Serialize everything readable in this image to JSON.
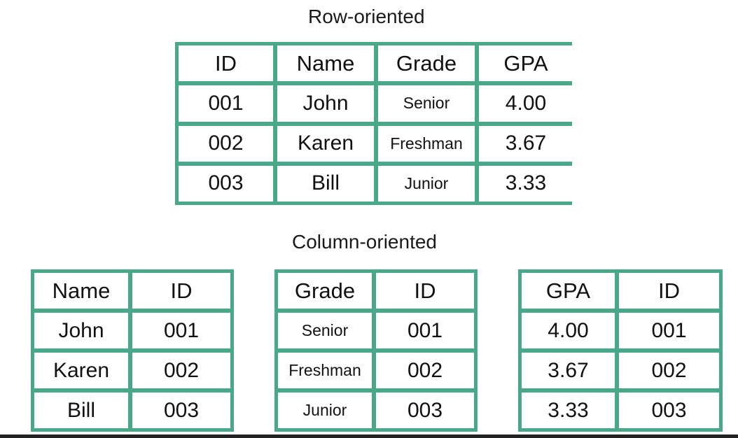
{
  "row_oriented": {
    "title": "Row-oriented",
    "headers": [
      "ID",
      "Name",
      "Grade",
      "GPA"
    ],
    "rows": [
      [
        "001",
        "John",
        "Senior",
        "4.00"
      ],
      [
        "002",
        "Karen",
        "Freshman",
        "3.67"
      ],
      [
        "003",
        "Bill",
        "Junior",
        "3.33"
      ]
    ]
  },
  "column_oriented": {
    "title": "Column-oriented",
    "tables": [
      {
        "headers": [
          "Name",
          "ID"
        ],
        "rows": [
          [
            "John",
            "001"
          ],
          [
            "Karen",
            "002"
          ],
          [
            "Bill",
            "003"
          ]
        ]
      },
      {
        "headers": [
          "Grade",
          "ID"
        ],
        "rows": [
          [
            "Senior",
            "001"
          ],
          [
            "Freshman",
            "002"
          ],
          [
            "Junior",
            "003"
          ]
        ]
      },
      {
        "headers": [
          "GPA",
          "ID"
        ],
        "rows": [
          [
            "4.00",
            "001"
          ],
          [
            "3.67",
            "002"
          ],
          [
            "3.33",
            "003"
          ]
        ]
      }
    ]
  },
  "colors": {
    "table_border": "#4aa88a",
    "cell_background": "#ffffff",
    "text": "#111111"
  }
}
